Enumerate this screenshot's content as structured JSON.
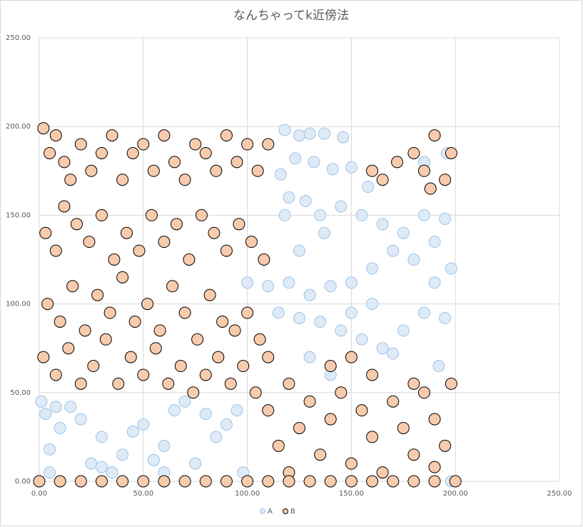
{
  "chart_data": {
    "type": "scatter",
    "title": "なんちゃってk近傍法",
    "xlim": [
      0,
      250
    ],
    "ylim": [
      0,
      250
    ],
    "xticks": [
      {
        "value": 0,
        "label": "0.00"
      },
      {
        "value": 50,
        "label": "50.00"
      },
      {
        "value": 100,
        "label": "100.00"
      },
      {
        "value": 150,
        "label": "150.00"
      },
      {
        "value": 200,
        "label": "200.00"
      },
      {
        "value": 250,
        "label": "250.00"
      }
    ],
    "yticks": [
      {
        "value": 0,
        "label": "0.00"
      },
      {
        "value": 50,
        "label": "50.00"
      },
      {
        "value": 100,
        "label": "100.00"
      },
      {
        "value": 150,
        "label": "150.00"
      },
      {
        "value": 200,
        "label": "200.00"
      },
      {
        "value": 250,
        "label": "250.00"
      }
    ],
    "grid": true,
    "legend": "bottom",
    "series": [
      {
        "name": "A",
        "color": "#deebf7",
        "edge": "#9dc3e6",
        "x": [
          118,
          125,
          130,
          137,
          146,
          123,
          132,
          141,
          150,
          158,
          116,
          120,
          128,
          135,
          145,
          155,
          165,
          175,
          185,
          195,
          190,
          180,
          170,
          160,
          150,
          140,
          130,
          120,
          110,
          100,
          115,
          125,
          135,
          145,
          155,
          165,
          175,
          185,
          195,
          198,
          192,
          170,
          130,
          140,
          118,
          196,
          185,
          160,
          150,
          125,
          137,
          190,
          1,
          3,
          5,
          8,
          10,
          15,
          20,
          25,
          30,
          35,
          40,
          45,
          50,
          55,
          60,
          65,
          70,
          75,
          80,
          85,
          90,
          95,
          98,
          5,
          30,
          60,
          0,
          198
        ],
        "values": [
          198,
          195,
          196,
          196,
          194,
          182,
          180,
          176,
          177,
          166,
          173,
          160,
          158,
          150,
          155,
          150,
          145,
          140,
          150,
          148,
          135,
          125,
          130,
          120,
          112,
          110,
          105,
          112,
          110,
          112,
          95,
          92,
          90,
          85,
          80,
          75,
          85,
          95,
          92,
          120,
          65,
          72,
          70,
          60,
          150,
          185,
          180,
          100,
          95,
          130,
          140,
          112,
          45,
          38,
          18,
          42,
          30,
          42,
          35,
          10,
          25,
          5,
          15,
          28,
          32,
          12,
          20,
          40,
          45,
          10,
          38,
          25,
          32,
          40,
          5,
          5,
          8,
          5,
          0,
          0
        ]
      },
      {
        "name": "B",
        "color": "#f8cbad",
        "edge": "#000000",
        "x": [
          2,
          5,
          8,
          12,
          15,
          20,
          25,
          30,
          35,
          40,
          45,
          50,
          55,
          60,
          65,
          70,
          75,
          80,
          85,
          90,
          95,
          100,
          105,
          110,
          3,
          8,
          12,
          18,
          24,
          30,
          36,
          42,
          48,
          54,
          60,
          66,
          72,
          78,
          84,
          90,
          96,
          102,
          108,
          4,
          10,
          16,
          22,
          28,
          34,
          40,
          46,
          52,
          58,
          64,
          70,
          76,
          82,
          88,
          94,
          100,
          106,
          2,
          8,
          14,
          20,
          26,
          32,
          38,
          44,
          50,
          56,
          62,
          68,
          74,
          80,
          86,
          92,
          98,
          104,
          110,
          160,
          165,
          172,
          180,
          185,
          190,
          195,
          198,
          188,
          110,
          115,
          120,
          125,
          130,
          135,
          140,
          145,
          150,
          155,
          160,
          165,
          170,
          175,
          180,
          185,
          190,
          195,
          198,
          120,
          140,
          160,
          180,
          150,
          190,
          0,
          10,
          20,
          30,
          40,
          50,
          60,
          70,
          80,
          90,
          100,
          110,
          120,
          130,
          140,
          150,
          160,
          170,
          180,
          190,
          200
        ],
        "values": [
          199,
          185,
          195,
          180,
          170,
          190,
          175,
          185,
          195,
          170,
          185,
          190,
          175,
          195,
          180,
          170,
          190,
          185,
          175,
          195,
          180,
          190,
          175,
          190,
          140,
          130,
          155,
          145,
          135,
          150,
          125,
          140,
          130,
          150,
          135,
          145,
          125,
          150,
          140,
          130,
          145,
          135,
          125,
          100,
          90,
          110,
          85,
          105,
          95,
          115,
          90,
          100,
          85,
          110,
          95,
          80,
          105,
          90,
          85,
          95,
          80,
          70,
          60,
          75,
          55,
          65,
          80,
          55,
          70,
          60,
          75,
          55,
          65,
          50,
          60,
          70,
          55,
          65,
          50,
          70,
          175,
          170,
          180,
          185,
          175,
          195,
          170,
          185,
          165,
          40,
          20,
          5,
          30,
          45,
          15,
          35,
          50,
          10,
          40,
          25,
          5,
          45,
          30,
          15,
          50,
          35,
          20,
          55,
          55,
          65,
          60,
          55,
          70,
          8,
          0,
          0,
          0,
          0,
          0,
          0,
          0,
          0,
          0,
          0,
          0,
          0,
          0,
          0,
          0,
          0,
          0,
          0,
          0,
          0,
          0
        ]
      }
    ]
  }
}
